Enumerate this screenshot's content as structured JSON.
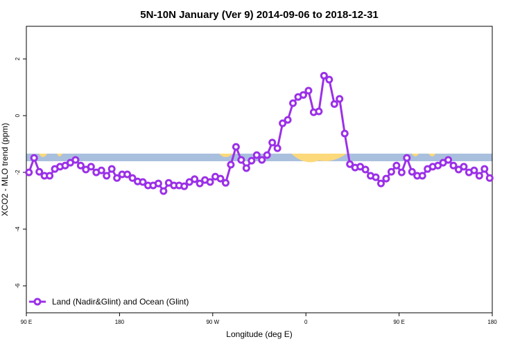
{
  "chart_data": {
    "type": "line",
    "title": "5N-10N January (Ver 9)   2014-09-06 to 2018-12-31",
    "xlabel": "Longitude (deg E)",
    "ylabel": "XCO2 - MLO trend (ppm)",
    "xlim": [
      90,
      540
    ],
    "ylim": [
      -6.95,
      3.15
    ],
    "xticks": [
      {
        "value": 90,
        "label": "90 E"
      },
      180,
      {
        "value": 270,
        "label": "90 W"
      },
      {
        "value": 360,
        "label": "0"
      },
      {
        "value": 450,
        "label": "90 E"
      },
      {
        "value": 540,
        "label": "180"
      }
    ],
    "yticks": [
      -6,
      -4,
      -2,
      0,
      2
    ],
    "legend": "bottom-left",
    "x": [
      92.5,
      97.5,
      102.5,
      107.5,
      112.5,
      117.5,
      122.5,
      127.5,
      132.5,
      137.5,
      142.5,
      147.5,
      152.5,
      157.5,
      162.5,
      167.5,
      172.5,
      177.5,
      182.5,
      187.5,
      192.5,
      197.5,
      202.5,
      207.5,
      212.5,
      217.5,
      222.5,
      227.5,
      232.5,
      237.5,
      242.5,
      247.5,
      252.5,
      257.5,
      262.5,
      267.5,
      272.5,
      277.5,
      282.5,
      287.5,
      292.5,
      297.5,
      302.5,
      307.5,
      312.5,
      317.5,
      322.5,
      327.5,
      332.5,
      337.5,
      342.5,
      347.5,
      352.5,
      357.5,
      362.5,
      367.5,
      372.5,
      377.5,
      382.5,
      387.5,
      392.5,
      397.5,
      402.5,
      407.5,
      412.5,
      417.5,
      422.5,
      427.5,
      432.5,
      437.5,
      442.5,
      447.5,
      452.5,
      457.5,
      462.5,
      467.5,
      472.5,
      477.5,
      482.5,
      487.5,
      492.5,
      497.5,
      502.5,
      507.5,
      512.5,
      517.5,
      522.5,
      527.5,
      532.5,
      537.5
    ],
    "series": [
      {
        "name": "Land (Nadir&Glint) and Ocean (Glint)",
        "color": "#9b30e8",
        "values": [
          -2.0,
          -1.49,
          -1.98,
          -2.12,
          -2.12,
          -1.88,
          -1.8,
          -1.76,
          -1.66,
          -1.56,
          -1.76,
          -1.9,
          -1.8,
          -2.0,
          -1.93,
          -2.12,
          -1.88,
          -2.2,
          -2.07,
          -2.07,
          -2.2,
          -2.32,
          -2.34,
          -2.46,
          -2.46,
          -2.39,
          -2.66,
          -2.37,
          -2.46,
          -2.46,
          -2.49,
          -2.34,
          -2.24,
          -2.39,
          -2.27,
          -2.34,
          -2.15,
          -2.22,
          -2.37,
          -1.73,
          -1.1,
          -1.56,
          -1.85,
          -1.59,
          -1.39,
          -1.56,
          -1.39,
          -0.95,
          -1.15,
          -0.27,
          -0.15,
          0.44,
          0.66,
          0.73,
          0.88,
          0.12,
          0.15,
          1.41,
          1.27,
          0.41,
          0.59,
          -0.63,
          -1.71,
          -1.83,
          -1.8,
          -1.9,
          -2.12,
          -2.17,
          -2.39,
          -2.22,
          -1.98,
          -1.76,
          -2.0,
          -1.49,
          -1.98,
          -2.12,
          -2.12,
          -1.88,
          -1.8,
          -1.76,
          -1.66,
          -1.56,
          -1.76,
          -1.9,
          -1.8,
          -2.0,
          -1.93,
          -2.12,
          -1.88,
          -2.2
        ]
      }
    ]
  }
}
